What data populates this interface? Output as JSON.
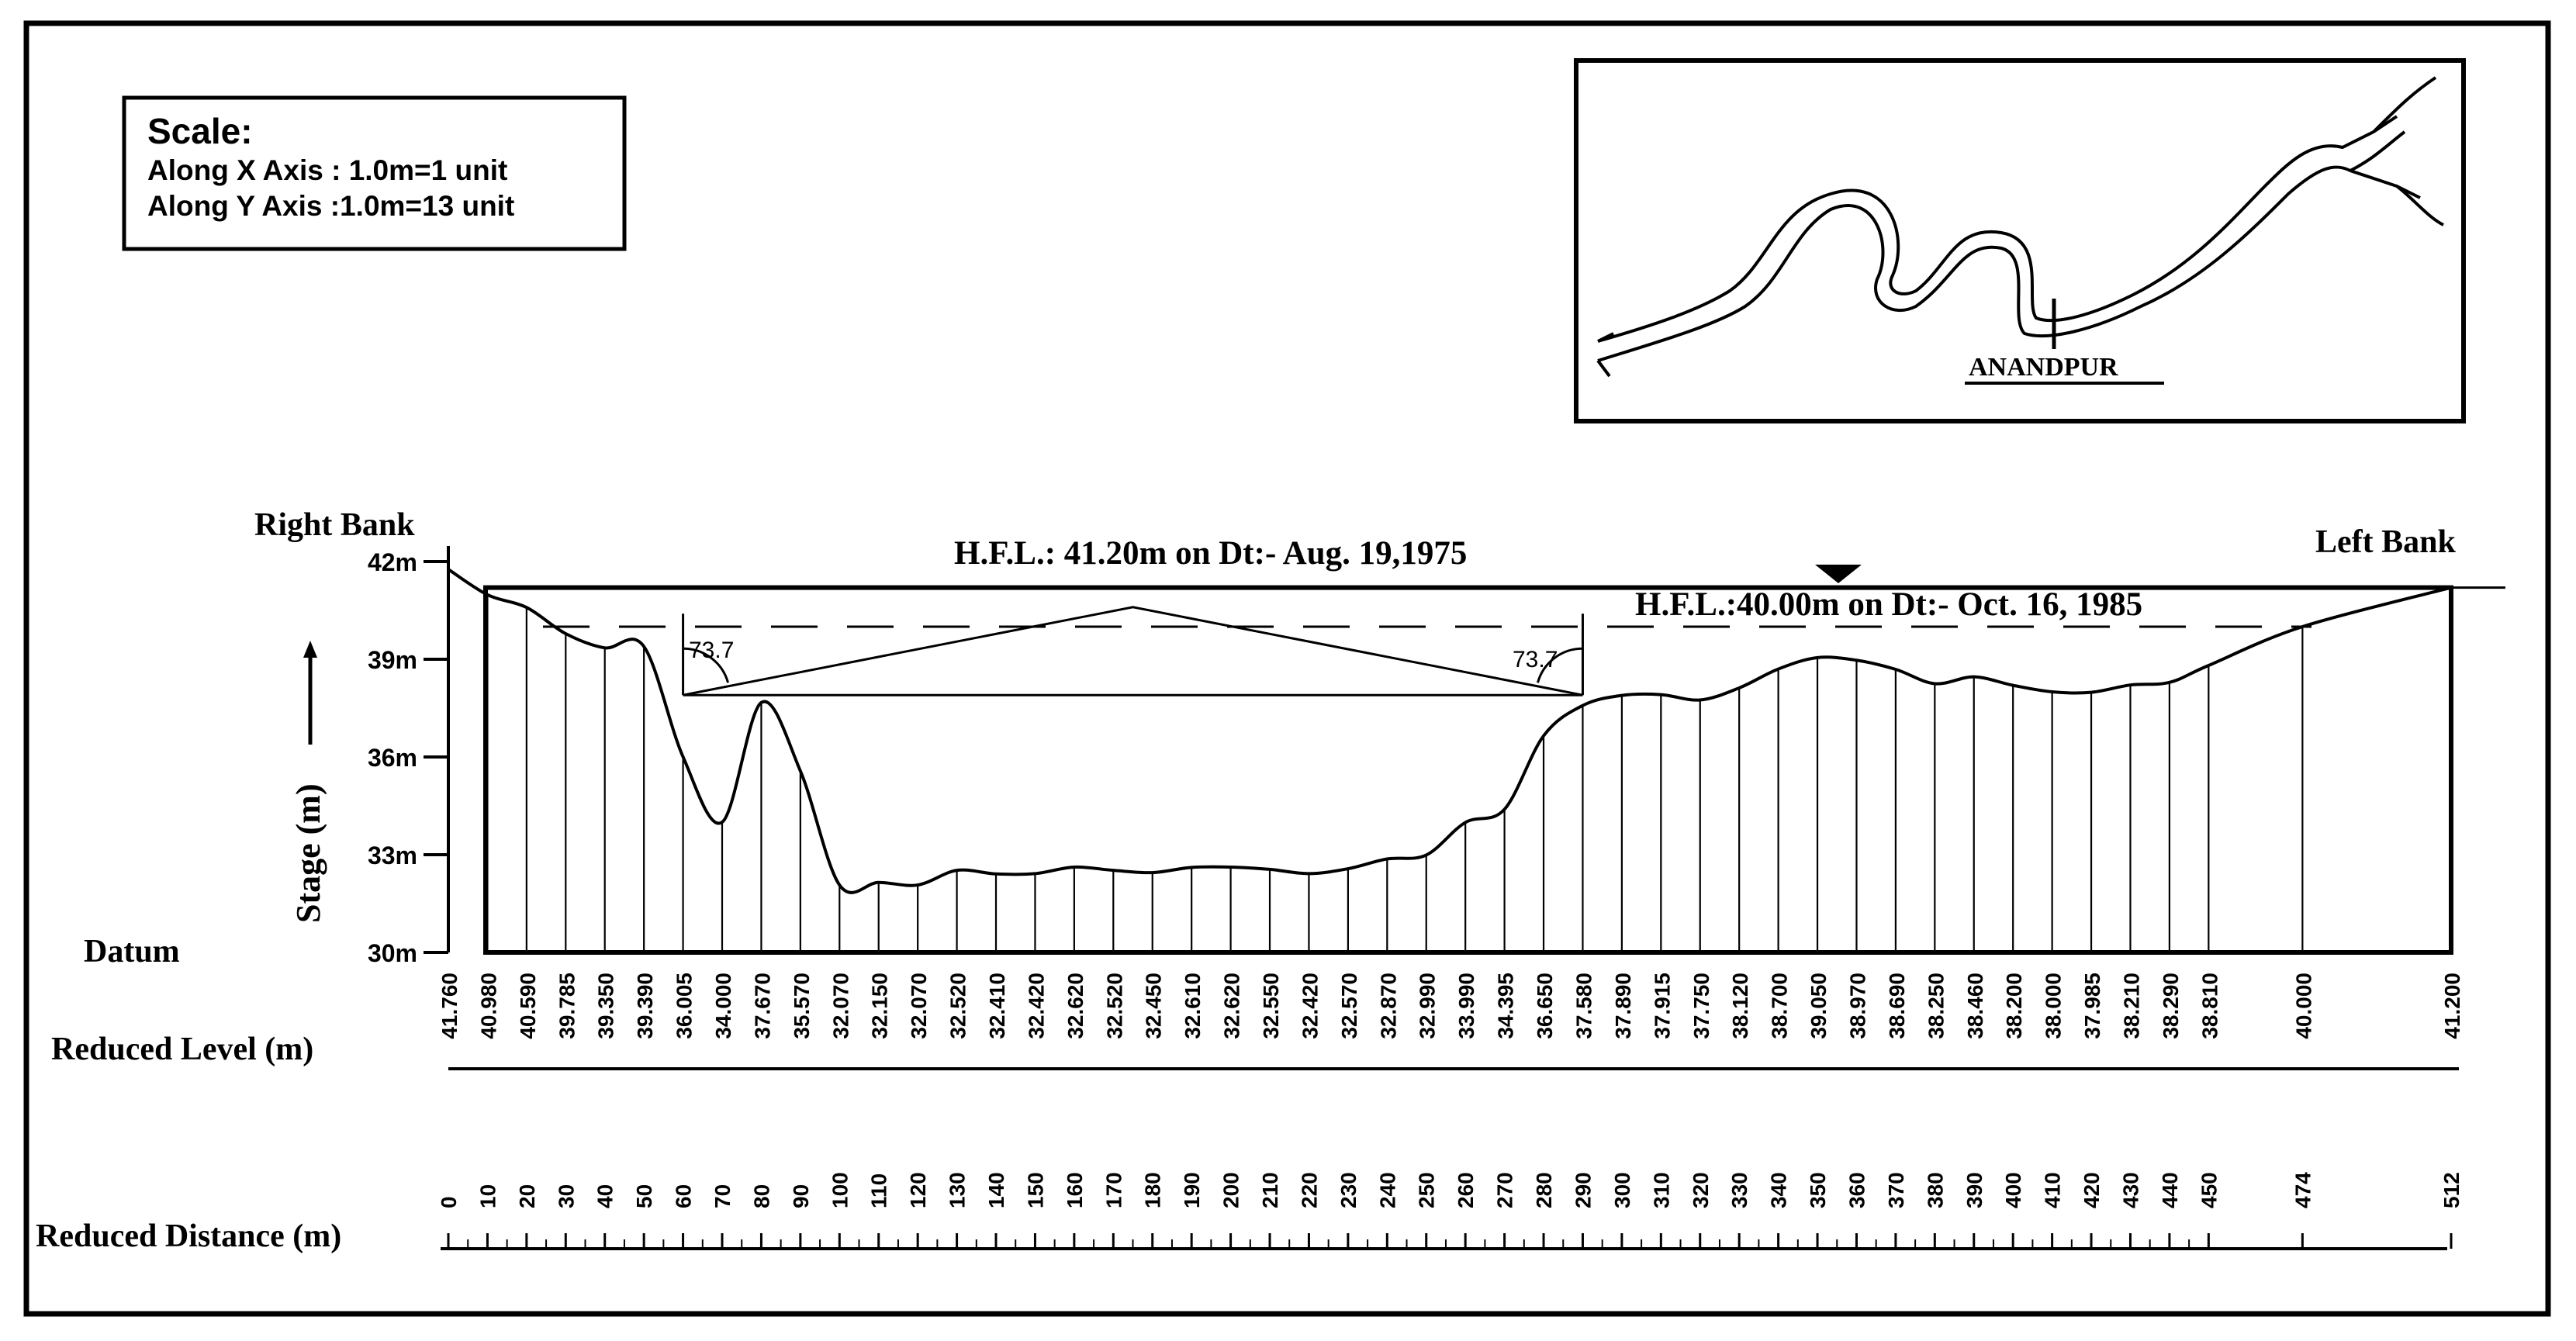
{
  "scale_box": {
    "title": "Scale:",
    "x_line": "Along X Axis : 1.0m=1 unit",
    "y_line": "Along Y Axis :1.0m=13 unit"
  },
  "location_map": {
    "label": "ANANDPUR"
  },
  "labels": {
    "right_bank": "Right Bank",
    "left_bank": "Left Bank",
    "datum": "Datum",
    "stage_axis": "Stage (m)",
    "reduced_level": "Reduced Level (m)",
    "reduced_distance": "Reduced Distance (m)",
    "hfl_1975": "H.F.L.: 41.20m on Dt:- Aug. 19,1975",
    "hfl_1985": "H.F.L.:40.00m on Dt:- Oct. 16, 1985",
    "angle_left": "73.7",
    "angle_right": "73.7"
  },
  "chart_data": {
    "type": "line",
    "stage_ticks": [
      {
        "label": "42m",
        "value": 42
      },
      {
        "label": "39m",
        "value": 39
      },
      {
        "label": "36m",
        "value": 36
      },
      {
        "label": "33m",
        "value": 33
      },
      {
        "label": "30m",
        "value": 30
      }
    ],
    "hfl_levels": [
      41.2,
      40.0
    ],
    "distances": [
      "0",
      "10",
      "20",
      "30",
      "40",
      "50",
      "60",
      "70",
      "80",
      "90",
      "100",
      "110",
      "120",
      "130",
      "140",
      "150",
      "160",
      "170",
      "180",
      "190",
      "200",
      "210",
      "220",
      "230",
      "240",
      "250",
      "260",
      "270",
      "280",
      "290",
      "300",
      "310",
      "320",
      "330",
      "340",
      "350",
      "360",
      "370",
      "380",
      "390",
      "400",
      "410",
      "420",
      "430",
      "440",
      "450",
      "474",
      "512"
    ],
    "levels": [
      "41.760",
      "40.980",
      "40.590",
      "39.785",
      "39.350",
      "39.390",
      "36.005",
      "34.000",
      "37.670",
      "35.570",
      "32.070",
      "32.150",
      "32.070",
      "32.520",
      "32.410",
      "32.420",
      "32.620",
      "32.520",
      "32.450",
      "32.610",
      "32.620",
      "32.550",
      "32.420",
      "32.570",
      "32.870",
      "32.990",
      "33.990",
      "34.395",
      "36.650",
      "37.580",
      "37.890",
      "37.915",
      "37.750",
      "38.120",
      "38.700",
      "39.050",
      "38.970",
      "38.690",
      "38.250",
      "38.460",
      "38.200",
      "38.000",
      "37.985",
      "38.210",
      "38.290",
      "38.810",
      "40.000",
      "41.200"
    ]
  }
}
